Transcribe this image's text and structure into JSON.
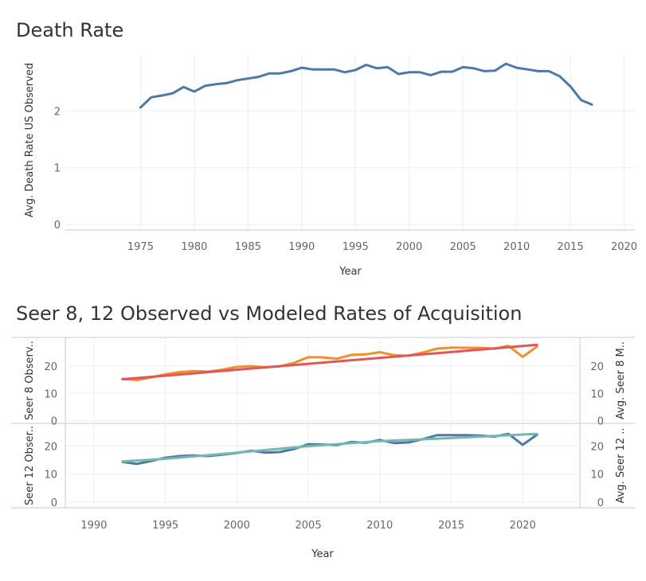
{
  "colors": {
    "death": "#4e79a7",
    "seer8_observed": "#f28e2b",
    "seer8_modeled": "#e15759",
    "seer12_observed": "#4e79a7",
    "seer12_modeled": "#76b7b2",
    "grid": "#eeeeee",
    "axis": "#c8c8c8"
  },
  "chart_data": [
    {
      "type": "line",
      "title": "Death Rate",
      "xlabel": "Year",
      "ylabel": "Avg. Death Rate US Observed",
      "xlim": [
        1968,
        2021
      ],
      "ylim": [
        -0.1,
        3.0
      ],
      "x_ticks": [
        1975,
        1980,
        1985,
        1990,
        1995,
        2000,
        2005,
        2010,
        2015,
        2020
      ],
      "y_ticks": [
        0,
        1,
        2
      ],
      "grid": true,
      "series": [
        {
          "x": [
            1975,
            1976,
            1977,
            1978,
            1979,
            1980,
            1981,
            1982,
            1983,
            1984,
            1985,
            1986,
            1987,
            1988,
            1989,
            1990,
            1991,
            1992,
            1993,
            1994,
            1995,
            1996,
            1997,
            1998,
            1999,
            2000,
            2001,
            2002,
            2003,
            2004,
            2005,
            2006,
            2007,
            2008,
            2009,
            2010,
            2011,
            2012,
            2013,
            2014,
            2015,
            2016,
            2017
          ],
          "y": [
            2.06,
            2.24,
            2.27,
            2.31,
            2.42,
            2.34,
            2.44,
            2.47,
            2.49,
            2.54,
            2.57,
            2.6,
            2.66,
            2.66,
            2.7,
            2.76,
            2.73,
            2.73,
            2.73,
            2.68,
            2.72,
            2.81,
            2.75,
            2.77,
            2.65,
            2.68,
            2.68,
            2.63,
            2.69,
            2.69,
            2.77,
            2.75,
            2.7,
            2.71,
            2.83,
            2.76,
            2.73,
            2.7,
            2.7,
            2.61,
            2.43,
            2.19,
            2.11
          ]
        }
      ]
    },
    {
      "type": "line",
      "title": "Seer 8, 12 Observed vs Modeled Rates of Acquisition",
      "xlabel": "Year",
      "xlim": [
        1988,
        2024
      ],
      "x_ticks": [
        1990,
        1995,
        2000,
        2005,
        2010,
        2015,
        2020
      ],
      "grid": true,
      "panels": [
        {
          "ylabel_left": "Seer 8 Observ..",
          "ylabel_right": "Avg. Seer 8 M..",
          "ylim": [
            -1,
            30.5
          ],
          "y_ticks": [
            0,
            10,
            20
          ],
          "series": [
            {
              "x": [
                1992,
                1993,
                1994,
                1995,
                1996,
                1997,
                1998,
                1999,
                2000,
                2001,
                2002,
                2003,
                2004,
                2005,
                2006,
                2007,
                2008,
                2009,
                2010,
                2011,
                2012,
                2013,
                2014,
                2015,
                2016,
                2017,
                2018,
                2019,
                2020,
                2021
              ],
              "y": [
                15.3,
                14.9,
                15.9,
                17.0,
                17.8,
                18.2,
                18.0,
                18.7,
                19.7,
                20.0,
                19.6,
                19.9,
                21.2,
                23.3,
                23.2,
                22.7,
                24.1,
                24.3,
                25.1,
                24.0,
                23.8,
                25.0,
                26.4,
                26.8,
                26.7,
                26.7,
                26.4,
                27.4,
                23.4,
                27.2
              ]
            },
            {
              "x": [
                1992,
                2021
              ],
              "y": [
                15.2,
                27.8
              ]
            }
          ]
        },
        {
          "ylabel_left": "Seer 12 Obser..",
          "ylabel_right": "Avg. Seer 12 ..",
          "ylim": [
            -2,
            28
          ],
          "y_ticks": [
            0,
            10,
            20
          ],
          "series": [
            {
              "x": [
                1992,
                1993,
                1994,
                1995,
                1996,
                1997,
                1998,
                1999,
                2000,
                2001,
                2002,
                2003,
                2004,
                2005,
                2006,
                2007,
                2008,
                2009,
                2010,
                2011,
                2012,
                2013,
                2014,
                2015,
                2016,
                2017,
                2018,
                2019,
                2020,
                2021
              ],
              "y": [
                14.3,
                13.6,
                14.6,
                15.8,
                16.4,
                16.6,
                16.4,
                16.9,
                17.5,
                18.3,
                17.6,
                17.8,
                18.9,
                20.6,
                20.5,
                20.3,
                21.4,
                21.1,
                22.1,
                21.0,
                21.2,
                22.4,
                23.8,
                23.8,
                23.8,
                23.7,
                23.3,
                24.3,
                20.4,
                24.0
              ]
            },
            {
              "x": [
                1992,
                1995,
                2000,
                2005,
                2010,
                2015,
                2021
              ],
              "y": [
                14.5,
                15.4,
                17.6,
                19.9,
                21.7,
                22.8,
                24.3
              ]
            }
          ]
        }
      ]
    }
  ]
}
